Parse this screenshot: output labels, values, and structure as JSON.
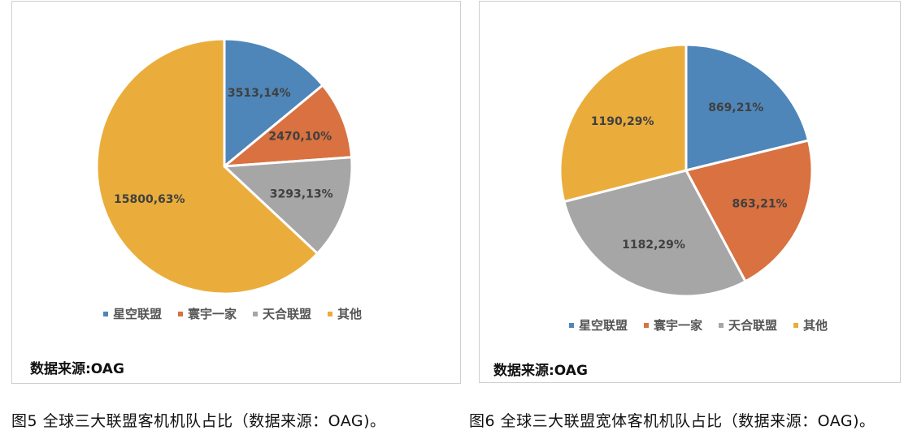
{
  "colors": {
    "star": "#4e86b9",
    "sky": "#d97140",
    "sky_team": "#a6a6a6",
    "other": "#eaad3b"
  },
  "legend": [
    "星空联盟",
    "寰宇一家",
    "天合联盟",
    "其他"
  ],
  "source_text": "数据来源:OAG",
  "captions": [
    "图5 全球三大联盟客机机队占比（数据来源：OAG)。",
    "图6 全球三大联盟宽体客机机队占比（数据来源：OAG)。"
  ],
  "chart_data": [
    {
      "type": "pie",
      "categories": [
        "星空联盟",
        "寰宇一家",
        "天合联盟",
        "其他"
      ],
      "values": [
        3513,
        2470,
        3293,
        15800
      ],
      "percents": [
        14,
        10,
        13,
        63
      ],
      "labels": [
        "3513,14%",
        "2470,10%",
        "3293,13%",
        "15800,63%"
      ],
      "legend_position": "bottom"
    },
    {
      "type": "pie",
      "categories": [
        "星空联盟",
        "寰宇一家",
        "天合联盟",
        "其他"
      ],
      "values": [
        869,
        863,
        1182,
        1190
      ],
      "percents": [
        21,
        21,
        29,
        29
      ],
      "labels": [
        "869,21%",
        "863,21%",
        "1182,29%",
        "1190,29%"
      ],
      "legend_position": "bottom"
    }
  ]
}
